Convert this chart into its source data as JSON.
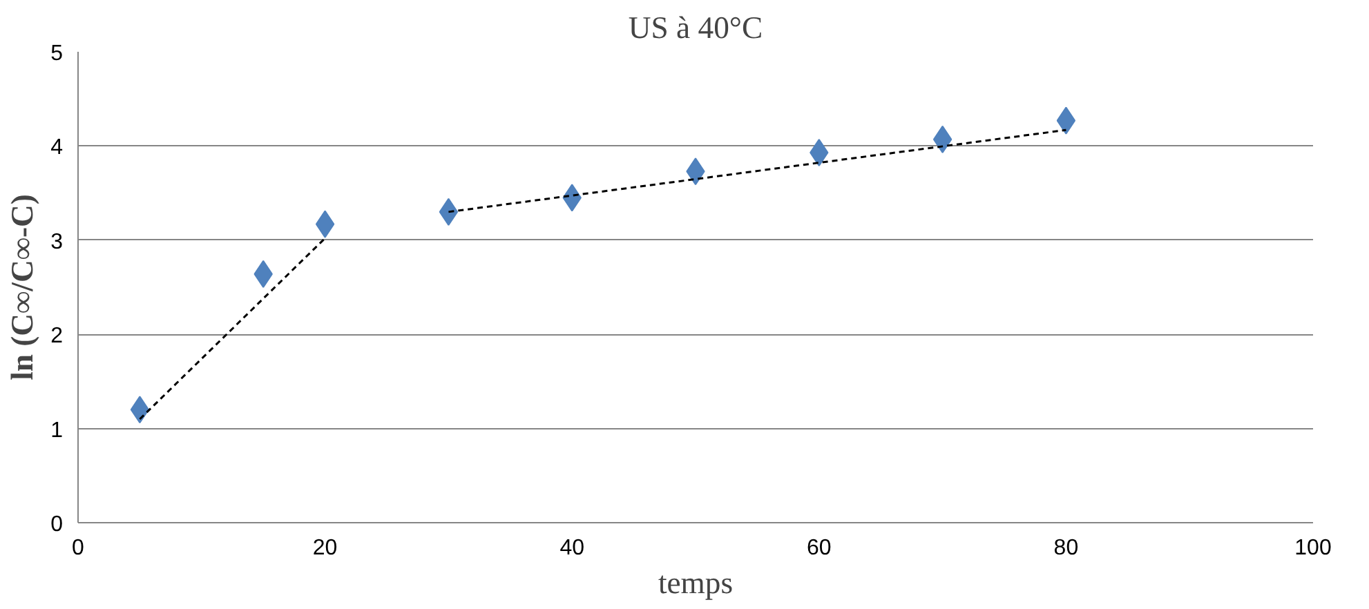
{
  "chart_data": {
    "type": "scatter",
    "title": "US à 40°C",
    "xlabel": "temps",
    "ylabel": "ln (C∞/C∞-C)",
    "xlim": [
      0,
      100
    ],
    "xticks": [
      0,
      20,
      40,
      60,
      80,
      100
    ],
    "ylim": [
      0,
      5
    ],
    "yticks": [
      0,
      1,
      2,
      3,
      4,
      5
    ],
    "grid": "y",
    "marker": "diamond",
    "series": [
      {
        "color": "#4f81bd",
        "x": [
          5,
          15,
          20,
          30,
          40,
          50,
          60,
          70,
          80
        ],
        "values": [
          1.2,
          2.64,
          3.17,
          3.3,
          3.45,
          3.73,
          3.93,
          4.07,
          4.27
        ]
      },
      {
        "type": "line",
        "color": "#000000",
        "line_style": "dashed",
        "marker": "none",
        "x": [
          5,
          20
        ],
        "values": [
          1.1,
          3.02
        ]
      },
      {
        "type": "line",
        "color": "#000000",
        "line_style": "dashed",
        "marker": "none",
        "x": [
          30,
          80
        ],
        "values": [
          3.3,
          4.17
        ]
      }
    ]
  }
}
